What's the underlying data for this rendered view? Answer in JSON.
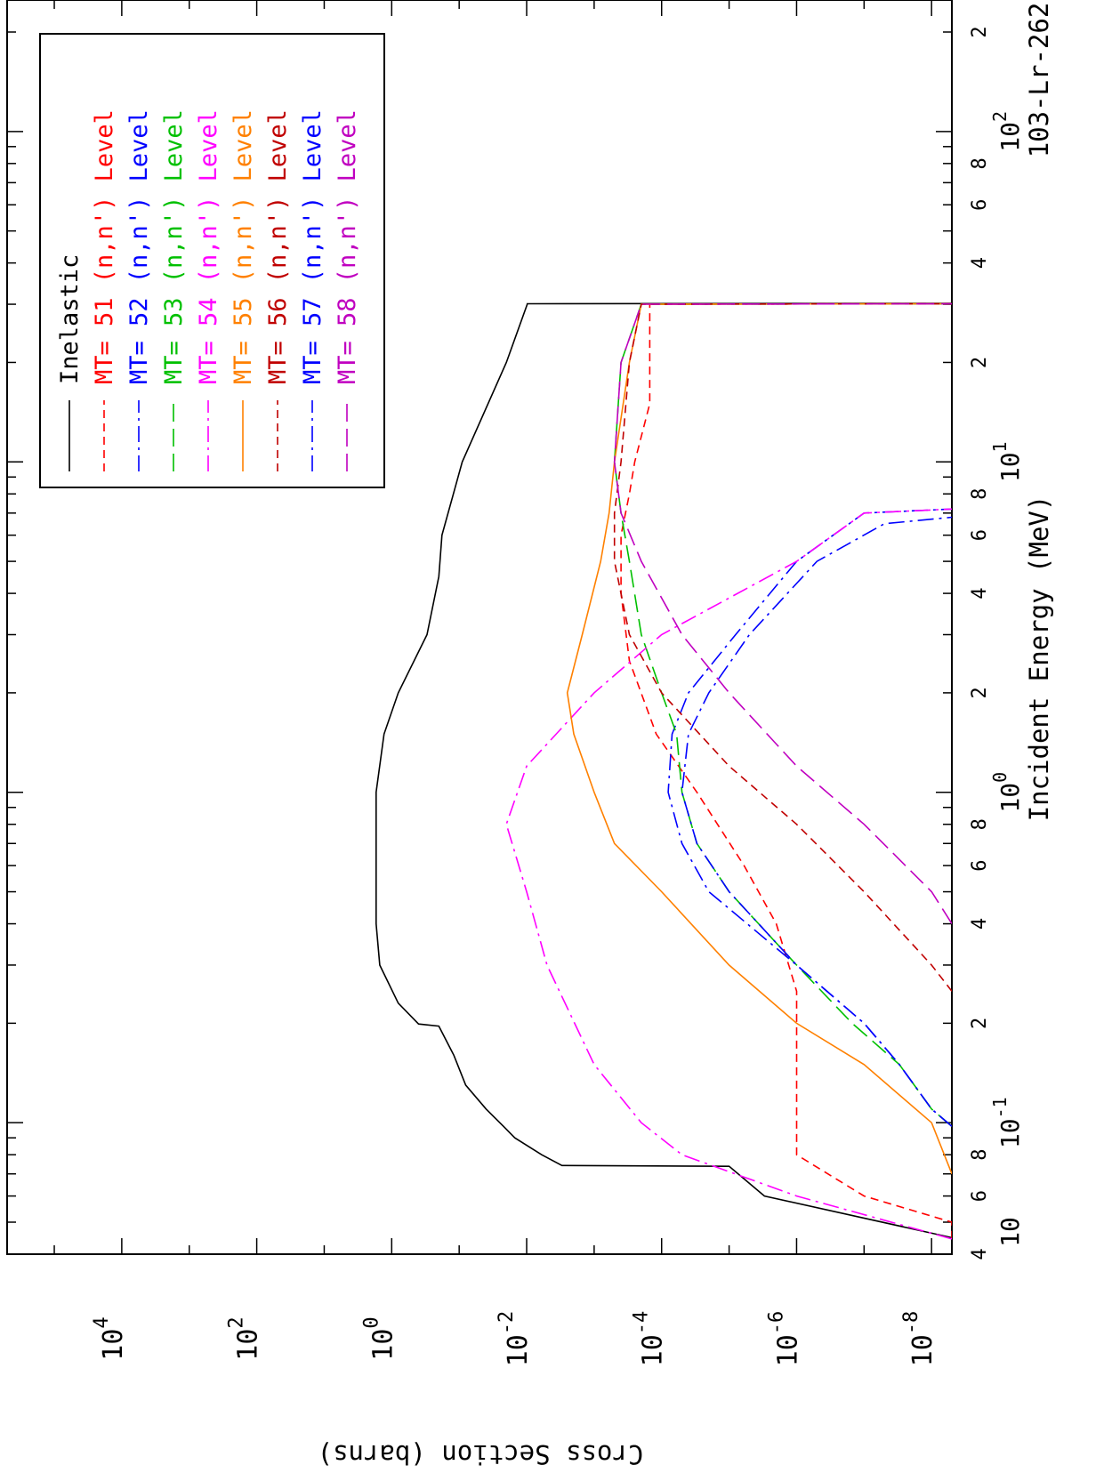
{
  "chart_data": {
    "type": "line",
    "orientation": "rotated 90 degrees clockwise (x axis runs top-to-bottom on the right, y axis runs left-to-right along the bottom)",
    "title": "103-Lr-262",
    "xlabel": "Incident Energy (MeV)",
    "ylabel": "Cross Section (barns)",
    "xscale": "log",
    "yscale": "log",
    "xlim": [
      0.04,
      250
    ],
    "ylim": [
      5e-09,
      500000.0
    ],
    "x_ticks": [
      {
        "v": 0.04,
        "major": "4"
      },
      {
        "v": 0.06,
        "major": "6"
      },
      {
        "v": 0.08,
        "major": "8"
      },
      {
        "v": 0.1,
        "base": "10",
        "exp": "-1"
      },
      {
        "v": 0.2,
        "major": "2"
      },
      {
        "v": 0.4,
        "major": "4"
      },
      {
        "v": 0.6,
        "major": "6"
      },
      {
        "v": 0.8,
        "major": "8"
      },
      {
        "v": 1,
        "base": "10",
        "exp": "0"
      },
      {
        "v": 2,
        "major": "2"
      },
      {
        "v": 4,
        "major": "4"
      },
      {
        "v": 6,
        "major": "6"
      },
      {
        "v": 8,
        "major": "8"
      },
      {
        "v": 10,
        "base": "10",
        "exp": "1"
      },
      {
        "v": 20,
        "major": "2"
      },
      {
        "v": 40,
        "major": "4"
      },
      {
        "v": 60,
        "major": "6"
      },
      {
        "v": 80,
        "major": "8"
      },
      {
        "v": 100,
        "base": "10",
        "exp": "2"
      },
      {
        "v": 200,
        "major": "2"
      }
    ],
    "x_extra_label": "10",
    "y_ticks": [
      {
        "v": 1e-08,
        "base": "10",
        "exp": "-8"
      },
      {
        "v": 1e-06,
        "base": "10",
        "exp": "-6"
      },
      {
        "v": 0.0001,
        "base": "10",
        "exp": "-4"
      },
      {
        "v": 0.01,
        "base": "10",
        "exp": "-2"
      },
      {
        "v": 1,
        "base": "10",
        "exp": "0"
      },
      {
        "v": 100.0,
        "base": "10",
        "exp": "2"
      },
      {
        "v": 10000.0,
        "base": "10",
        "exp": "4"
      }
    ],
    "legend_position": "top-left of plot area",
    "legend": [
      {
        "text": "Inelastic",
        "color": "#000000",
        "dash": "solid"
      },
      {
        "text": "MT= 51 (n,n') Level",
        "color": "#ff0000",
        "dash": "dashed"
      },
      {
        "text": "MT= 52 (n,n') Level",
        "color": "#0000ff",
        "dash": "dash-dot"
      },
      {
        "text": "MT= 53 (n,n') Level",
        "color": "#00c000",
        "dash": "long-dash"
      },
      {
        "text": "MT= 54 (n,n') Level",
        "color": "#ff00ff",
        "dash": "dash-dot"
      },
      {
        "text": "MT= 55 (n,n') Level",
        "color": "#ff8000",
        "dash": "solid"
      },
      {
        "text": "MT= 56 (n,n') Level",
        "color": "#c00000",
        "dash": "dashed"
      },
      {
        "text": "MT= 57 (n,n') Level",
        "color": "#0000ff",
        "dash": "dash-dot"
      },
      {
        "text": "MT= 58 (n,n') Level",
        "color": "#c000c0",
        "dash": "long-dash"
      }
    ],
    "series": [
      {
        "name": "Inelastic",
        "color": "#000000",
        "dash": "solid",
        "x": [
          0.0445,
          0.0449,
          0.06,
          0.0738,
          0.0742,
          0.08,
          0.09,
          0.0975,
          0.11,
          0.13,
          0.16,
          0.196,
          0.199,
          0.23,
          0.3,
          0.4,
          0.7,
          1,
          1.5,
          2,
          3,
          4.5,
          6,
          10,
          20,
          30,
          30.1,
          30.2
        ],
        "y": [
          5e-09,
          5e-09,
          3e-06,
          1e-05,
          0.003,
          0.006,
          0.015,
          0.022,
          0.04,
          0.08,
          0.12,
          0.2,
          0.4,
          0.8,
          1.5,
          1.7,
          1.7,
          1.7,
          1.3,
          0.8,
          0.3,
          0.2,
          0.18,
          0.09,
          0.02,
          0.0098,
          0.0098,
          5e-09
        ]
      },
      {
        "name": "MT= 51 (n,n') Level",
        "color": "#ff0000",
        "dash": "dashed",
        "x": [
          0.0445,
          0.05,
          0.06,
          0.08,
          0.1,
          0.15,
          0.25,
          0.4,
          0.6,
          1,
          1.5,
          2.5,
          4,
          6,
          8,
          10,
          15,
          20,
          30,
          30.1
        ],
        "y": [
          5e-09,
          5e-09,
          1e-07,
          1e-06,
          1e-06,
          1e-06,
          1e-06,
          2e-06,
          6e-06,
          3e-05,
          0.00012,
          0.0003,
          0.0004,
          0.0004,
          0.0003,
          0.00025,
          0.00015,
          0.00015,
          0.00015,
          5e-09
        ]
      },
      {
        "name": "MT= 52 (n,n') Level",
        "color": "#0000ff",
        "dash": "dash-dot",
        "x": [
          0.0975,
          0.11,
          0.15,
          0.2,
          0.3,
          0.5,
          0.7,
          1,
          1.5,
          2,
          3,
          5,
          7,
          7.2
        ],
        "y": [
          5e-09,
          1e-08,
          3e-08,
          1e-07,
          1e-06,
          2e-05,
          5e-05,
          8e-05,
          7e-05,
          4e-05,
          8e-06,
          1e-06,
          1e-07,
          5e-09
        ]
      },
      {
        "name": "MT= 53 (n,n') Level",
        "color": "#00c000",
        "dash": "long-dash",
        "x": [
          0.0975,
          0.11,
          0.15,
          0.2,
          0.3,
          0.5,
          0.7,
          1,
          1.5,
          2,
          3,
          5,
          7,
          10,
          20,
          30,
          30.1
        ],
        "y": [
          5e-09,
          1e-08,
          3e-08,
          1.5e-07,
          1e-06,
          1e-05,
          3e-05,
          5e-05,
          6e-05,
          0.0001,
          0.0002,
          0.0003,
          0.0004,
          0.0005,
          0.0004,
          0.0002,
          5e-09
        ]
      },
      {
        "name": "MT= 54 (n,n') Level",
        "color": "#ff00ff",
        "dash": "dash-dot",
        "x": [
          0.0445,
          0.06,
          0.08,
          0.1,
          0.15,
          0.3,
          0.5,
          0.8,
          1.2,
          2,
          3,
          5,
          7,
          7.2
        ],
        "y": [
          5e-09,
          1e-06,
          5e-05,
          0.0002,
          0.001,
          0.005,
          0.01,
          0.02,
          0.01,
          0.001,
          0.0001,
          1e-06,
          1e-07,
          5e-09
        ]
      },
      {
        "name": "MT= 55 (n,n') Level",
        "color": "#ff8000",
        "dash": "solid",
        "x": [
          0.07,
          0.1,
          0.15,
          0.2,
          0.3,
          0.5,
          0.7,
          1,
          1.5,
          2,
          3,
          5,
          7,
          10,
          20,
          30,
          30.1
        ],
        "y": [
          5e-09,
          1e-08,
          1e-07,
          1e-06,
          1e-05,
          0.0001,
          0.0005,
          0.001,
          0.002,
          0.0025,
          0.0015,
          0.0008,
          0.0006,
          0.0005,
          0.0003,
          0.0002,
          5e-09
        ]
      },
      {
        "name": "MT= 56 (n,n') Level",
        "color": "#c00000",
        "dash": "dashed",
        "x": [
          0.25,
          0.3,
          0.5,
          0.8,
          1.2,
          2,
          3,
          5,
          7,
          10,
          20,
          30,
          30.1
        ],
        "y": [
          5e-09,
          1e-08,
          1e-07,
          1e-06,
          1e-05,
          0.0001,
          0.0003,
          0.0005,
          0.0005,
          0.0004,
          0.0003,
          0.0002,
          5e-09
        ]
      },
      {
        "name": "MT= 57 (n,n') Level",
        "color": "#0000ff",
        "dash": "dash-dot",
        "x": [
          0.0975,
          0.11,
          0.15,
          0.2,
          0.3,
          0.5,
          0.7,
          1,
          1.5,
          2,
          3,
          5,
          6.5,
          6.8
        ],
        "y": [
          5e-09,
          1e-08,
          3e-08,
          1e-07,
          1e-06,
          1e-05,
          3e-05,
          5e-05,
          4e-05,
          2e-05,
          5e-06,
          5e-07,
          5e-08,
          5e-09
        ]
      },
      {
        "name": "MT= 58 (n,n') Level",
        "color": "#c000c0",
        "dash": "long-dash",
        "x": [
          0.4,
          0.5,
          0.8,
          1.2,
          2,
          3,
          5,
          7,
          10,
          20,
          30,
          30.1
        ],
        "y": [
          5e-09,
          1e-08,
          1e-07,
          1e-06,
          1e-05,
          5e-05,
          0.0002,
          0.0004,
          0.0005,
          0.0004,
          0.0002,
          5e-09
        ]
      }
    ]
  }
}
